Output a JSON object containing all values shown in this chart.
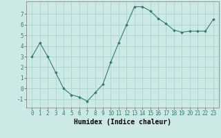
{
  "x": [
    0,
    1,
    2,
    3,
    4,
    5,
    6,
    7,
    8,
    9,
    10,
    11,
    12,
    13,
    14,
    15,
    16,
    17,
    18,
    19,
    20,
    21,
    22,
    23
  ],
  "y": [
    3.0,
    4.3,
    3.0,
    1.5,
    0.0,
    -0.6,
    -0.8,
    -1.2,
    -0.4,
    0.4,
    2.5,
    4.3,
    6.0,
    7.7,
    7.7,
    7.3,
    6.6,
    6.1,
    5.5,
    5.3,
    5.4,
    5.4,
    5.4,
    6.5
  ],
  "xlabel": "Humidex (Indice chaleur)",
  "ylim": [
    -1.8,
    8.2
  ],
  "yticks": [
    -1,
    0,
    1,
    2,
    3,
    4,
    5,
    6,
    7
  ],
  "xticks": [
    0,
    1,
    2,
    3,
    4,
    5,
    6,
    7,
    8,
    9,
    10,
    11,
    12,
    13,
    14,
    15,
    16,
    17,
    18,
    19,
    20,
    21,
    22,
    23
  ],
  "line_color": "#2e7d6e",
  "marker": "D",
  "marker_size": 1.8,
  "bg_color": "#cce9e5",
  "grid_color": "#aad4cf",
  "tick_fontsize": 5.5,
  "xlabel_fontsize": 7.0
}
